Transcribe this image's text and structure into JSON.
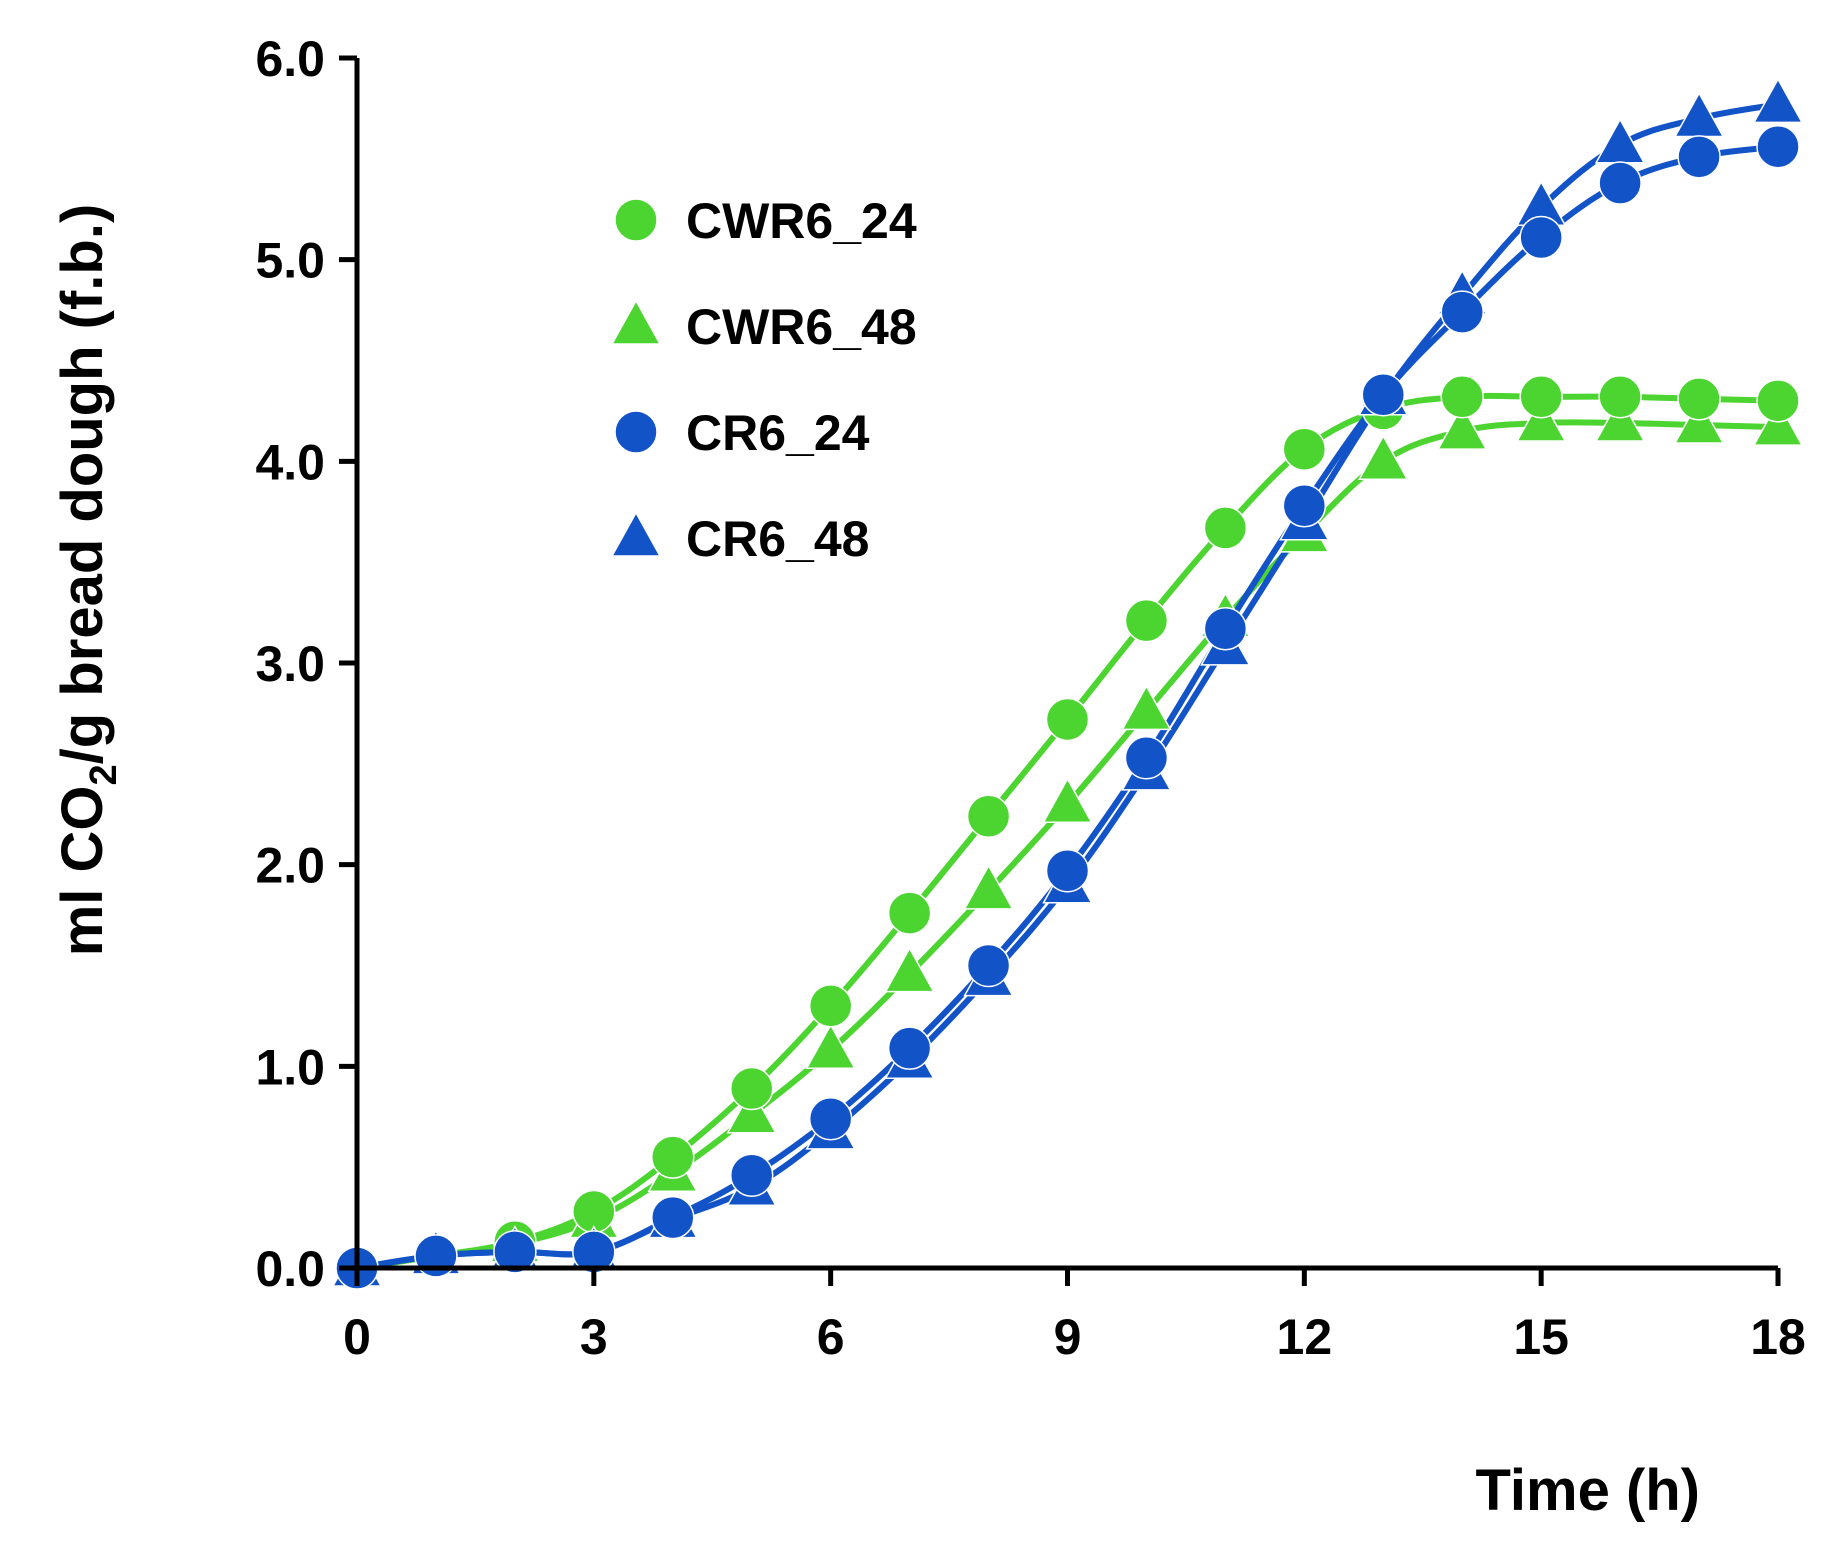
{
  "chart_data": {
    "type": "line",
    "title": "",
    "xlabel": "Time (h)",
    "ylabel_parts": {
      "before": "ml CO",
      "subscript": "2",
      "after": "/g bread dough (f.b.)"
    },
    "xlim": [
      0,
      18
    ],
    "ylim": [
      0,
      6
    ],
    "x_ticks": [
      "0",
      "3",
      "6",
      "9",
      "12",
      "15",
      "18"
    ],
    "x_tick_values": [
      0,
      3,
      6,
      9,
      12,
      15,
      18
    ],
    "y_ticks": [
      "0.0",
      "1.0",
      "2.0",
      "3.0",
      "4.0",
      "5.0",
      "6.0"
    ],
    "y_tick_values": [
      0,
      1,
      2,
      3,
      4,
      5,
      6
    ],
    "grid": false,
    "legend_position": "top-left",
    "x": [
      0,
      1,
      2,
      3,
      4,
      5,
      6,
      7,
      8,
      9,
      10,
      11,
      12,
      13,
      14,
      15,
      16,
      17,
      18
    ],
    "series": [
      {
        "name": "CWR6_24",
        "marker": "circle",
        "color": "#4cd431",
        "values": [
          0.0,
          0.06,
          0.13,
          0.28,
          0.55,
          0.89,
          1.3,
          1.76,
          2.24,
          2.72,
          3.21,
          3.67,
          4.06,
          4.26,
          4.32,
          4.32,
          4.32,
          4.31,
          4.3
        ]
      },
      {
        "name": "CWR6_48",
        "marker": "triangle",
        "color": "#4cd431",
        "values": [
          0.0,
          0.06,
          0.12,
          0.24,
          0.47,
          0.76,
          1.08,
          1.46,
          1.87,
          2.3,
          2.76,
          3.22,
          3.64,
          4.0,
          4.15,
          4.19,
          4.19,
          4.18,
          4.17
        ]
      },
      {
        "name": "CR6_24",
        "marker": "circle",
        "color": "#1253c8",
        "values": [
          0.0,
          0.06,
          0.08,
          0.08,
          0.25,
          0.46,
          0.74,
          1.09,
          1.5,
          1.97,
          2.53,
          3.17,
          3.78,
          4.33,
          4.74,
          5.11,
          5.38,
          5.51,
          5.56
        ]
      },
      {
        "name": "CR6_48",
        "marker": "triangle",
        "color": "#1253c8",
        "values": [
          0.0,
          0.06,
          0.08,
          0.08,
          0.24,
          0.4,
          0.68,
          1.03,
          1.44,
          1.9,
          2.46,
          3.08,
          3.7,
          4.32,
          4.82,
          5.26,
          5.57,
          5.7,
          5.77
        ]
      }
    ]
  }
}
